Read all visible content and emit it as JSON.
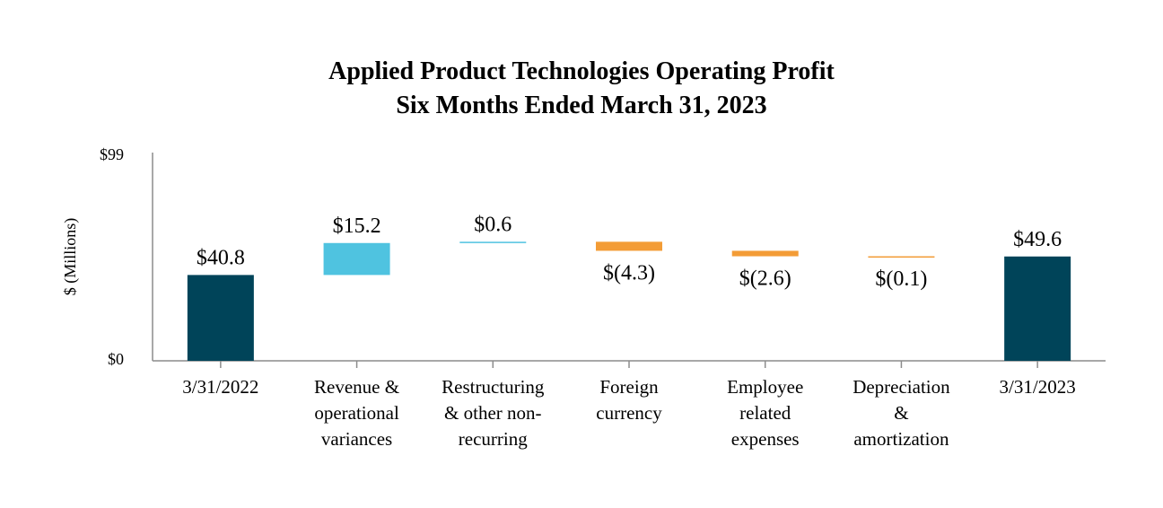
{
  "chart_data": {
    "type": "bar",
    "subtype": "waterfall",
    "title": "Applied Product Technologies Operating Profit",
    "subtitle": "Six Months Ended March 31, 2023",
    "ylabel": "$ (Millions)",
    "xlabel": "",
    "ylim": [
      0,
      99
    ],
    "y_tick_labels": [
      "$0",
      "$99"
    ],
    "grid": false,
    "categories": [
      [
        "3/31/2022"
      ],
      [
        "Revenue &",
        "operational",
        "variances"
      ],
      [
        "Restructuring",
        "& other non-",
        "recurring"
      ],
      [
        "Foreign",
        "currency"
      ],
      [
        "Employee",
        "related",
        "expenses"
      ],
      [
        "Depreciation",
        "&",
        "amortization"
      ],
      [
        "3/31/2023"
      ]
    ],
    "values": [
      40.8,
      15.2,
      0.6,
      -4.3,
      -2.6,
      -0.1,
      49.6
    ],
    "labels": [
      "$40.8",
      "$15.2",
      "$0.6",
      "$(4.3)",
      "$(2.6)",
      "$(0.1)",
      "$49.6"
    ],
    "kinds": [
      "total",
      "increase",
      "increase",
      "decrease",
      "decrease",
      "decrease",
      "total"
    ],
    "colors": {
      "total": "#004459",
      "increase": "#4fc3e0",
      "decrease": "#f39c36",
      "axis": "#8c8c8c"
    }
  }
}
